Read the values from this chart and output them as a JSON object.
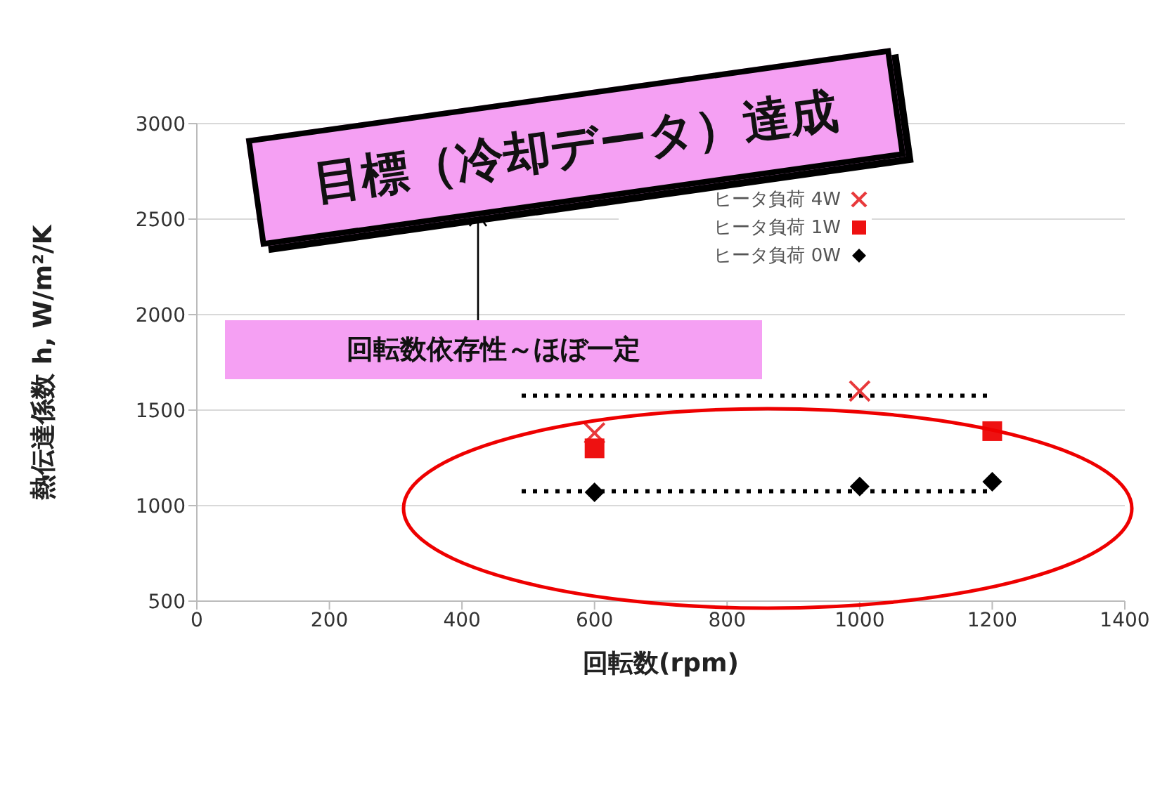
{
  "chart_data": {
    "type": "scatter",
    "title": "目標（冷却データ）達成",
    "xlabel": "回転数(rpm)",
    "ylabel": "熱伝達係数 h, W/m²/K",
    "annotations": [
      "回転数依存性～ほぼ一定"
    ],
    "xlim": [
      0,
      1400
    ],
    "xticks": [
      0,
      200,
      400,
      600,
      800,
      1000,
      1200,
      1400
    ],
    "ylim": [
      500,
      3000
    ],
    "yticks": [
      500,
      1000,
      1500,
      2000,
      2500,
      3000
    ],
    "grid": "y",
    "legend": "top",
    "series": [
      {
        "name": "ヒータ負荷 4W",
        "color": "#e8393b",
        "marker": "cross",
        "x": [
          600,
          1000
        ],
        "values": [
          1380,
          1600
        ]
      },
      {
        "name": "ヒータ負荷 1W",
        "color": "#ee1111",
        "marker": "square",
        "x": [
          600,
          1000,
          1200
        ],
        "values": [
          1300,
          null,
          1390
        ]
      },
      {
        "name": "ヒータ負荷 0W",
        "color": "#000000",
        "marker": "diamond",
        "x": [
          600,
          1000,
          1200
        ],
        "values": [
          1070,
          1100,
          1125
        ]
      },
      {
        "type": "line",
        "color": "#000000",
        "line_style": "dotted",
        "marker": "none",
        "x": [
          490,
          1200
        ],
        "values": [
          1575,
          1575
        ]
      },
      {
        "type": "line",
        "color": "#000000",
        "line_style": "dotted",
        "marker": "none",
        "x": [
          490,
          1200
        ],
        "values": [
          1075,
          1075
        ]
      }
    ]
  }
}
